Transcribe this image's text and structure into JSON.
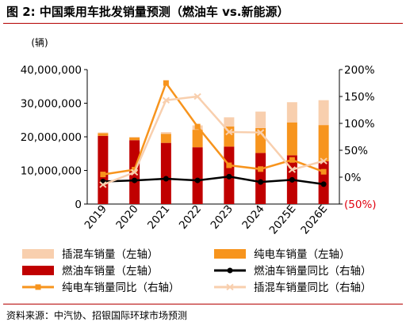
{
  "header": {
    "title": "图 2: 中国乘用车批发销量预测（燃油车 vs.新能源）"
  },
  "footer": {
    "source": "资料来源：中汽协、招银国际环球市场预测"
  },
  "chart_data": {
    "type": "bar",
    "unit_label": "(辆)",
    "categories": [
      "2019",
      "2020",
      "2021",
      "2022",
      "2023",
      "2024",
      "2025E",
      "2026E"
    ],
    "left_axis": {
      "ylim": [
        0,
        40000000
      ],
      "ticks": [
        "0",
        "10,000,000",
        "20,000,000",
        "30,000,000",
        "40,000,000"
      ]
    },
    "right_axis": {
      "ylim": [
        -50,
        200
      ],
      "ticks": [
        "(50%)",
        "0%",
        "50%",
        "100%",
        "150%",
        "200%"
      ]
    },
    "series": [
      {
        "name": "燃油车销量（左轴）",
        "kind": "bar",
        "color": "#c00000",
        "values": [
          20300000,
          19000000,
          18200000,
          16900000,
          17100000,
          15200000,
          14500000,
          12700000
        ]
      },
      {
        "name": "纯电车销量（左轴）",
        "kind": "bar",
        "color": "#f7941d",
        "values": [
          800000,
          800000,
          2700000,
          5200000,
          6000000,
          7400000,
          9800000,
          10800000
        ]
      },
      {
        "name": "插混车销量（左轴）",
        "kind": "bar",
        "color": "#f8cfae",
        "values": [
          200000,
          200000,
          500000,
          1300000,
          2700000,
          4900000,
          6000000,
          7400000
        ]
      },
      {
        "name": "燃油车销量同比（右轴）",
        "kind": "line",
        "color": "#000000",
        "values": [
          -8,
          -6,
          -3,
          -6,
          1,
          -9,
          -5,
          -13
        ]
      },
      {
        "name": "纯电车销量同比（右轴）",
        "kind": "line",
        "color": "#f7941d",
        "values": [
          5,
          14,
          175,
          94,
          22,
          15,
          32,
          10
        ]
      },
      {
        "name": "插混车销量同比（右轴）",
        "kind": "line",
        "color": "#f8cfae",
        "values": [
          -14,
          9,
          143,
          150,
          84,
          83,
          14,
          30
        ]
      }
    ],
    "legend": {
      "placement": "bottom",
      "items": [
        "插混车销量（左轴）",
        "纯电车销量（左轴）",
        "燃油车销量（左轴）",
        "燃油车销量同比（右轴）",
        "纯电车销量同比（右轴）",
        "插混车销量同比（右轴）"
      ]
    }
  }
}
